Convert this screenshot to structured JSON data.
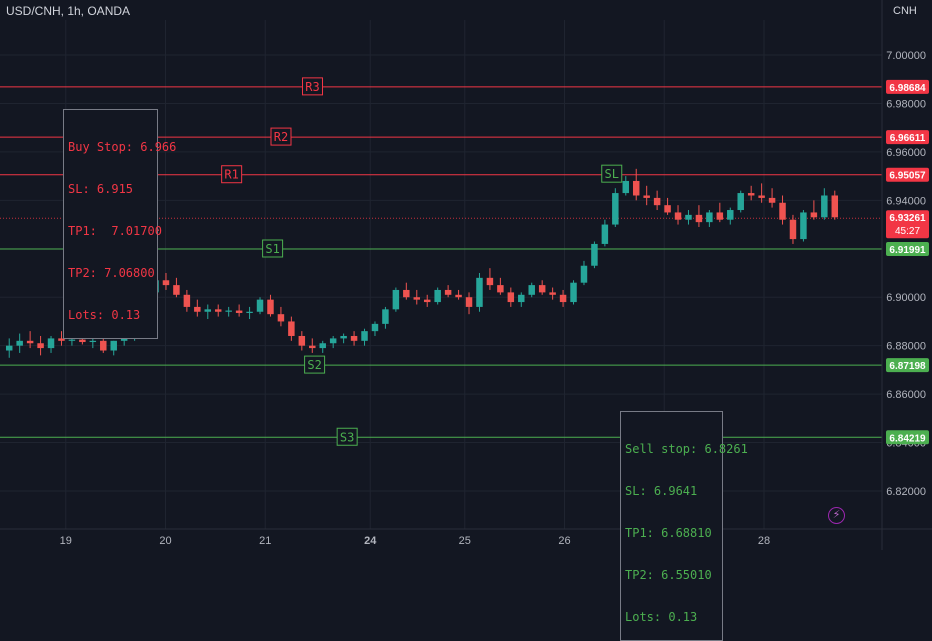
{
  "title": "USD/CNH, 1h, OANDA",
  "currency": "CNH",
  "colors": {
    "background": "#131722",
    "grid": "#1f2430",
    "text": "#b2b5be",
    "up": "#26a69a",
    "down": "#ef5350",
    "resistance": "#f23645",
    "support": "#4caf50",
    "price_line": "#f23645"
  },
  "icons": {
    "flash": "flash-icon"
  },
  "notes": {
    "buy": [
      "Buy Stop: 6.966",
      "SL: 6.915",
      "TP1:  7.01700",
      "TP2: 7.06800",
      "Lots: 0.13"
    ],
    "sell": [
      "Sell stop: 6.8261",
      "SL: 6.9641",
      "TP1: 6.68810",
      "TP2: 6.55010",
      "Lots: 0.13"
    ]
  },
  "chart_data": {
    "type": "candlestick",
    "symbol": "USD/CNH",
    "timeframe": "1h",
    "source": "OANDA",
    "ylim": [
      6.808,
      7.013
    ],
    "y_ticks": [
      "6.82000",
      "6.84000",
      "6.86000",
      "6.88000",
      "6.90000",
      "6.92000",
      "6.94000",
      "6.96000",
      "6.98000",
      "7.00000"
    ],
    "x_ticks": [
      {
        "label": "19",
        "pos": 5.5,
        "bold": false
      },
      {
        "label": "20",
        "pos": 15,
        "bold": false
      },
      {
        "label": "21",
        "pos": 24.5,
        "bold": false
      },
      {
        "label": "24",
        "pos": 34.5,
        "bold": true
      },
      {
        "label": "25",
        "pos": 43.5,
        "bold": false
      },
      {
        "label": "26",
        "pos": 53,
        "bold": false
      },
      {
        "label": "27",
        "pos": 62.5,
        "bold": false
      },
      {
        "label": "28",
        "pos": 72,
        "bold": false
      }
    ],
    "x_range": [
      0,
      79
    ],
    "levels": [
      {
        "name": "R3",
        "value": 6.98684,
        "label": "6.98684",
        "kind": "resistance",
        "tag_pos": 29
      },
      {
        "name": "R2",
        "value": 6.96611,
        "label": "6.96611",
        "kind": "resistance",
        "tag_pos": 26
      },
      {
        "name": "R1",
        "value": 6.95057,
        "label": "6.95057",
        "kind": "resistance",
        "tag_pos": 21.3
      },
      {
        "name": "S1",
        "value": 6.91991,
        "label": "6.91991",
        "kind": "support",
        "tag_pos": 25.2
      },
      {
        "name": "S2",
        "value": 6.87198,
        "label": "6.87198",
        "kind": "support",
        "tag_pos": 29.2
      },
      {
        "name": "S3",
        "value": 6.84219,
        "label": "6.84219",
        "kind": "support",
        "tag_pos": 32.3
      }
    ],
    "sl_markers": [
      {
        "label": "SL",
        "pos": 7.3,
        "value": 6.916,
        "kind": "resistance"
      },
      {
        "label": "SL",
        "pos": 57.5,
        "value": 6.9508,
        "kind": "support"
      }
    ],
    "current_price": {
      "value": 6.93261,
      "label": "6.93261",
      "countdown": "45:27"
    },
    "candles": [
      {
        "o": 6.878,
        "h": 6.883,
        "l": 6.875,
        "c": 6.88
      },
      {
        "o": 6.88,
        "h": 6.885,
        "l": 6.877,
        "c": 6.882
      },
      {
        "o": 6.882,
        "h": 6.886,
        "l": 6.879,
        "c": 6.881
      },
      {
        "o": 6.881,
        "h": 6.884,
        "l": 6.876,
        "c": 6.879
      },
      {
        "o": 6.879,
        "h": 6.884,
        "l": 6.877,
        "c": 6.883
      },
      {
        "o": 6.883,
        "h": 6.886,
        "l": 6.88,
        "c": 6.882
      },
      {
        "o": 6.882,
        "h": 6.884,
        "l": 6.88,
        "c": 6.8825
      },
      {
        "o": 6.8825,
        "h": 6.8845,
        "l": 6.8805,
        "c": 6.8815
      },
      {
        "o": 6.8815,
        "h": 6.8835,
        "l": 6.879,
        "c": 6.882
      },
      {
        "o": 6.882,
        "h": 6.884,
        "l": 6.877,
        "c": 6.878
      },
      {
        "o": 6.878,
        "h": 6.882,
        "l": 6.876,
        "c": 6.882
      },
      {
        "o": 6.882,
        "h": 6.885,
        "l": 6.88,
        "c": 6.884
      },
      {
        "o": 6.884,
        "h": 6.89,
        "l": 6.882,
        "c": 6.889
      },
      {
        "o": 6.889,
        "h": 6.903,
        "l": 6.888,
        "c": 6.902
      },
      {
        "o": 6.902,
        "h": 6.909,
        "l": 6.9,
        "c": 6.907
      },
      {
        "o": 6.907,
        "h": 6.91,
        "l": 6.903,
        "c": 6.905
      },
      {
        "o": 6.905,
        "h": 6.908,
        "l": 6.9,
        "c": 6.901
      },
      {
        "o": 6.901,
        "h": 6.903,
        "l": 6.894,
        "c": 6.896
      },
      {
        "o": 6.896,
        "h": 6.899,
        "l": 6.892,
        "c": 6.894
      },
      {
        "o": 6.894,
        "h": 6.897,
        "l": 6.891,
        "c": 6.895
      },
      {
        "o": 6.895,
        "h": 6.897,
        "l": 6.892,
        "c": 6.894
      },
      {
        "o": 6.894,
        "h": 6.896,
        "l": 6.892,
        "c": 6.8945
      },
      {
        "o": 6.8945,
        "h": 6.897,
        "l": 6.892,
        "c": 6.8935
      },
      {
        "o": 6.8935,
        "h": 6.896,
        "l": 6.891,
        "c": 6.894
      },
      {
        "o": 6.894,
        "h": 6.9,
        "l": 6.893,
        "c": 6.899
      },
      {
        "o": 6.899,
        "h": 6.901,
        "l": 6.892,
        "c": 6.893
      },
      {
        "o": 6.893,
        "h": 6.896,
        "l": 6.888,
        "c": 6.89
      },
      {
        "o": 6.89,
        "h": 6.892,
        "l": 6.882,
        "c": 6.884
      },
      {
        "o": 6.884,
        "h": 6.886,
        "l": 6.878,
        "c": 6.88
      },
      {
        "o": 6.88,
        "h": 6.883,
        "l": 6.877,
        "c": 6.879
      },
      {
        "o": 6.879,
        "h": 6.882,
        "l": 6.877,
        "c": 6.881
      },
      {
        "o": 6.881,
        "h": 6.884,
        "l": 6.879,
        "c": 6.883
      },
      {
        "o": 6.883,
        "h": 6.885,
        "l": 6.881,
        "c": 6.884
      },
      {
        "o": 6.884,
        "h": 6.886,
        "l": 6.88,
        "c": 6.882
      },
      {
        "o": 6.882,
        "h": 6.887,
        "l": 6.88,
        "c": 6.886
      },
      {
        "o": 6.886,
        "h": 6.89,
        "l": 6.884,
        "c": 6.889
      },
      {
        "o": 6.889,
        "h": 6.896,
        "l": 6.887,
        "c": 6.895
      },
      {
        "o": 6.895,
        "h": 6.904,
        "l": 6.894,
        "c": 6.903
      },
      {
        "o": 6.903,
        "h": 6.906,
        "l": 6.899,
        "c": 6.9
      },
      {
        "o": 6.9,
        "h": 6.903,
        "l": 6.897,
        "c": 6.899
      },
      {
        "o": 6.899,
        "h": 6.901,
        "l": 6.896,
        "c": 6.898
      },
      {
        "o": 6.898,
        "h": 6.904,
        "l": 6.897,
        "c": 6.903
      },
      {
        "o": 6.903,
        "h": 6.905,
        "l": 6.9,
        "c": 6.901
      },
      {
        "o": 6.901,
        "h": 6.903,
        "l": 6.899,
        "c": 6.9
      },
      {
        "o": 6.9,
        "h": 6.902,
        "l": 6.893,
        "c": 6.896
      },
      {
        "o": 6.896,
        "h": 6.91,
        "l": 6.894,
        "c": 6.908
      },
      {
        "o": 6.908,
        "h": 6.912,
        "l": 6.903,
        "c": 6.905
      },
      {
        "o": 6.905,
        "h": 6.908,
        "l": 6.901,
        "c": 6.902
      },
      {
        "o": 6.902,
        "h": 6.904,
        "l": 6.896,
        "c": 6.898
      },
      {
        "o": 6.898,
        "h": 6.902,
        "l": 6.896,
        "c": 6.901
      },
      {
        "o": 6.901,
        "h": 6.906,
        "l": 6.9,
        "c": 6.905
      },
      {
        "o": 6.905,
        "h": 6.907,
        "l": 6.901,
        "c": 6.902
      },
      {
        "o": 6.902,
        "h": 6.904,
        "l": 6.899,
        "c": 6.901
      },
      {
        "o": 6.901,
        "h": 6.903,
        "l": 6.896,
        "c": 6.898
      },
      {
        "o": 6.898,
        "h": 6.907,
        "l": 6.897,
        "c": 6.906
      },
      {
        "o": 6.906,
        "h": 6.915,
        "l": 6.905,
        "c": 6.913
      },
      {
        "o": 6.913,
        "h": 6.923,
        "l": 6.912,
        "c": 6.922
      },
      {
        "o": 6.922,
        "h": 6.932,
        "l": 6.921,
        "c": 6.93
      },
      {
        "o": 6.93,
        "h": 6.945,
        "l": 6.929,
        "c": 6.943
      },
      {
        "o": 6.943,
        "h": 6.95,
        "l": 6.942,
        "c": 6.948
      },
      {
        "o": 6.948,
        "h": 6.953,
        "l": 6.94,
        "c": 6.942
      },
      {
        "o": 6.942,
        "h": 6.946,
        "l": 6.938,
        "c": 6.941
      },
      {
        "o": 6.941,
        "h": 6.944,
        "l": 6.936,
        "c": 6.938
      },
      {
        "o": 6.938,
        "h": 6.941,
        "l": 6.934,
        "c": 6.935
      },
      {
        "o": 6.935,
        "h": 6.938,
        "l": 6.93,
        "c": 6.932
      },
      {
        "o": 6.932,
        "h": 6.936,
        "l": 6.93,
        "c": 6.934
      },
      {
        "o": 6.934,
        "h": 6.938,
        "l": 6.929,
        "c": 6.931
      },
      {
        "o": 6.931,
        "h": 6.936,
        "l": 6.929,
        "c": 6.935
      },
      {
        "o": 6.935,
        "h": 6.939,
        "l": 6.931,
        "c": 6.932
      },
      {
        "o": 6.932,
        "h": 6.937,
        "l": 6.93,
        "c": 6.936
      },
      {
        "o": 6.936,
        "h": 6.944,
        "l": 6.935,
        "c": 6.943
      },
      {
        "o": 6.943,
        "h": 6.946,
        "l": 6.94,
        "c": 6.942
      },
      {
        "o": 6.942,
        "h": 6.947,
        "l": 6.939,
        "c": 6.941
      },
      {
        "o": 6.941,
        "h": 6.945,
        "l": 6.937,
        "c": 6.939
      },
      {
        "o": 6.939,
        "h": 6.942,
        "l": 6.93,
        "c": 6.932
      },
      {
        "o": 6.932,
        "h": 6.934,
        "l": 6.922,
        "c": 6.924
      },
      {
        "o": 6.924,
        "h": 6.936,
        "l": 6.923,
        "c": 6.935
      },
      {
        "o": 6.935,
        "h": 6.94,
        "l": 6.932,
        "c": 6.933
      },
      {
        "o": 6.933,
        "h": 6.945,
        "l": 6.932,
        "c": 6.942
      },
      {
        "o": 6.942,
        "h": 6.944,
        "l": 6.932,
        "c": 6.933
      }
    ]
  }
}
